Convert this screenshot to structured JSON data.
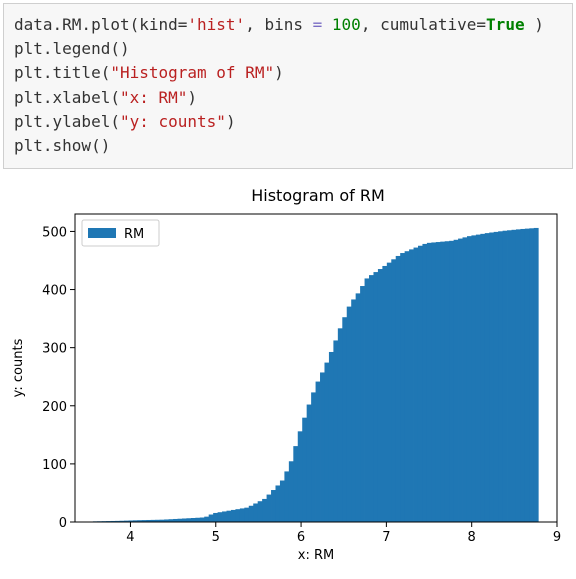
{
  "code_cell": {
    "lines": [
      [
        {
          "t": "data.RM.plot(kind="
        },
        {
          "t": "'hist'",
          "c": "str"
        },
        {
          "t": ", bins "
        },
        {
          "t": "=",
          "c": "op"
        },
        {
          "t": " "
        },
        {
          "t": "100",
          "c": "num"
        },
        {
          "t": ", cumulative="
        },
        {
          "t": "True",
          "c": "kw"
        },
        {
          "t": " )"
        }
      ],
      [
        {
          "t": "plt.legend()"
        }
      ],
      [
        {
          "t": "plt.title("
        },
        {
          "t": "\"Histogram of RM\"",
          "c": "str"
        },
        {
          "t": ")"
        }
      ],
      [
        {
          "t": "plt.xlabel("
        },
        {
          "t": "\"x: RM\"",
          "c": "str"
        },
        {
          "t": ")"
        }
      ],
      [
        {
          "t": "plt.ylabel("
        },
        {
          "t": "\"y: counts\"",
          "c": "str"
        },
        {
          "t": ")"
        }
      ],
      [
        {
          "t": "plt.show()"
        }
      ]
    ]
  },
  "chart_data": {
    "type": "bar",
    "title": "Histogram of RM",
    "xlabel": "x: RM",
    "ylabel": "y: counts",
    "legend": {
      "label": "RM",
      "placement": "top-left"
    },
    "bar_color": "#1f77b4",
    "cumulative": true,
    "bins": 100,
    "xlim": [
      3.35,
      9.0
    ],
    "ylim": [
      0,
      530
    ],
    "xticks": [
      4,
      5,
      6,
      7,
      8,
      9
    ],
    "yticks": [
      0,
      100,
      200,
      300,
      400,
      500
    ],
    "curve_points": [
      [
        3.56,
        1
      ],
      [
        3.9,
        2
      ],
      [
        4.1,
        3
      ],
      [
        4.4,
        4
      ],
      [
        4.9,
        8
      ],
      [
        5.0,
        15
      ],
      [
        5.2,
        20
      ],
      [
        5.4,
        25
      ],
      [
        5.6,
        40
      ],
      [
        5.8,
        70
      ],
      [
        5.9,
        100
      ],
      [
        6.0,
        150
      ],
      [
        6.1,
        195
      ],
      [
        6.2,
        235
      ],
      [
        6.3,
        265
      ],
      [
        6.4,
        300
      ],
      [
        6.5,
        340
      ],
      [
        6.6,
        375
      ],
      [
        6.7,
        395
      ],
      [
        6.8,
        420
      ],
      [
        7.0,
        440
      ],
      [
        7.2,
        462
      ],
      [
        7.5,
        480
      ],
      [
        7.8,
        484
      ],
      [
        8.0,
        492
      ],
      [
        8.2,
        497
      ],
      [
        8.4,
        501
      ],
      [
        8.6,
        504
      ],
      [
        8.78,
        506
      ]
    ]
  }
}
